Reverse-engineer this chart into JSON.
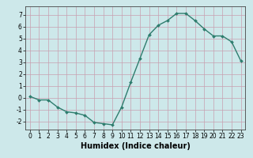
{
  "x": [
    0,
    1,
    2,
    3,
    4,
    5,
    6,
    7,
    8,
    9,
    10,
    11,
    12,
    13,
    14,
    15,
    16,
    17,
    18,
    19,
    20,
    21,
    22,
    23
  ],
  "y": [
    0.1,
    -0.2,
    -0.2,
    -0.8,
    -1.2,
    -1.3,
    -1.5,
    -2.1,
    -2.2,
    -2.3,
    -0.8,
    1.3,
    3.3,
    5.3,
    6.1,
    6.5,
    7.1,
    7.1,
    6.5,
    5.8,
    5.2,
    5.2,
    4.7,
    3.1
  ],
  "line_color": "#2e7d6e",
  "marker": "D",
  "marker_size": 2.0,
  "bg_color": "#cde8ea",
  "grid_color": "#c8a0b0",
  "xlabel": "Humidex (Indice chaleur)",
  "xlim": [
    -0.5,
    23.5
  ],
  "ylim": [
    -2.7,
    7.7
  ],
  "yticks": [
    -2,
    -1,
    0,
    1,
    2,
    3,
    4,
    5,
    6,
    7
  ],
  "xticks": [
    0,
    1,
    2,
    3,
    4,
    5,
    6,
    7,
    8,
    9,
    10,
    11,
    12,
    13,
    14,
    15,
    16,
    17,
    18,
    19,
    20,
    21,
    22,
    23
  ],
  "tick_label_fontsize": 5.5,
  "xlabel_fontsize": 7.0,
  "linewidth": 1.0
}
